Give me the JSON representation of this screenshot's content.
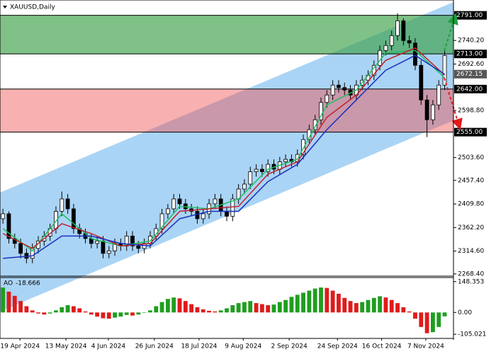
{
  "chart_data": {
    "type": "candlestick",
    "title": "XAUUSD,Daily",
    "xlim": [
      -0.5,
      76.5
    ],
    "xticks": [
      {
        "value": 2.9,
        "label": "19 Apr 2024"
      },
      {
        "value": 10.7,
        "label": "13 May 2024"
      },
      {
        "value": 17.9,
        "label": "4 Jun 2024"
      },
      {
        "value": 25.7,
        "label": "26 Jun 2024"
      },
      {
        "value": 33.3,
        "label": "18 Jul 2024"
      },
      {
        "value": 40.8,
        "label": "9 Aug 2024"
      },
      {
        "value": 48.6,
        "label": "2 Sep 2024"
      },
      {
        "value": 56.8,
        "label": "24 Sep 2024"
      },
      {
        "value": 64.3,
        "label": "16 Oct 2024"
      },
      {
        "value": 71.8,
        "label": "7 Nov 2024"
      }
    ],
    "ylim": [
      2264,
      2822
    ],
    "yticks": [
      {
        "value": 2740.2,
        "label": "2740.20"
      },
      {
        "value": 2692.6,
        "label": "2692.60"
      },
      {
        "value": 2598.8,
        "label": "2598.80"
      },
      {
        "value": 2503.6,
        "label": "2503.60"
      },
      {
        "value": 2457.4,
        "label": "2457.40"
      },
      {
        "value": 2409.8,
        "label": "2409.80"
      },
      {
        "value": 2362.2,
        "label": "2362.20"
      },
      {
        "value": 2314.6,
        "label": "2314.60"
      },
      {
        "value": 2268.4,
        "label": "2268.40"
      }
    ],
    "levels": [
      {
        "value": 2791,
        "label": "2791.00"
      },
      {
        "value": 2713,
        "label": "2713.00"
      },
      {
        "value": 2642,
        "label": "2642.00"
      },
      {
        "value": 2555,
        "label": "2555.00"
      }
    ],
    "last_price": 2672.15,
    "up_color": "#ffffff",
    "down_color": "#000000",
    "open": [
      2380,
      2390,
      2340,
      2330,
      2310,
      2300,
      2320,
      2335,
      2345,
      2360,
      2395,
      2420,
      2400,
      2360,
      2350,
      2340,
      2330,
      2335,
      2310,
      2315,
      2330,
      2325,
      2345,
      2325,
      2320,
      2330,
      2345,
      2360,
      2390,
      2400,
      2420,
      2410,
      2400,
      2395,
      2380,
      2390,
      2410,
      2420,
      2395,
      2385,
      2420,
      2440,
      2450,
      2475,
      2480,
      2475,
      2490,
      2480,
      2495,
      2500,
      2495,
      2510,
      2540,
      2560,
      2580,
      2615,
      2630,
      2650,
      2645,
      2640,
      2630,
      2650,
      2660,
      2670,
      2690,
      2720,
      2730,
      2750,
      2780,
      2740,
      2735,
      2690,
      2620,
      2580,
      2610,
      2650
    ],
    "high": [
      2400,
      2395,
      2350,
      2340,
      2320,
      2330,
      2345,
      2355,
      2370,
      2405,
      2435,
      2430,
      2410,
      2370,
      2360,
      2350,
      2345,
      2345,
      2325,
      2340,
      2340,
      2355,
      2355,
      2335,
      2340,
      2355,
      2370,
      2400,
      2410,
      2430,
      2430,
      2420,
      2410,
      2405,
      2400,
      2420,
      2430,
      2430,
      2405,
      2430,
      2450,
      2460,
      2485,
      2490,
      2490,
      2500,
      2500,
      2505,
      2510,
      2510,
      2520,
      2550,
      2570,
      2590,
      2625,
      2640,
      2660,
      2660,
      2655,
      2650,
      2660,
      2670,
      2680,
      2700,
      2730,
      2740,
      2760,
      2795,
      2785,
      2750,
      2745,
      2700,
      2630,
      2620,
      2660,
      2720
    ],
    "low": [
      2370,
      2330,
      2320,
      2300,
      2290,
      2290,
      2310,
      2325,
      2335,
      2350,
      2385,
      2390,
      2350,
      2340,
      2330,
      2320,
      2320,
      2300,
      2300,
      2305,
      2315,
      2315,
      2315,
      2310,
      2310,
      2320,
      2335,
      2350,
      2380,
      2390,
      2400,
      2390,
      2385,
      2370,
      2370,
      2380,
      2400,
      2385,
      2375,
      2375,
      2410,
      2430,
      2440,
      2465,
      2465,
      2465,
      2470,
      2470,
      2485,
      2485,
      2485,
      2500,
      2530,
      2550,
      2570,
      2605,
      2620,
      2635,
      2630,
      2620,
      2620,
      2640,
      2650,
      2660,
      2680,
      2710,
      2720,
      2740,
      2730,
      2725,
      2680,
      2610,
      2545,
      2570,
      2600,
      2640
    ],
    "close": [
      2390,
      2340,
      2330,
      2310,
      2300,
      2320,
      2335,
      2345,
      2360,
      2395,
      2420,
      2400,
      2360,
      2350,
      2340,
      2330,
      2335,
      2310,
      2315,
      2330,
      2325,
      2345,
      2325,
      2320,
      2330,
      2345,
      2360,
      2390,
      2400,
      2420,
      2410,
      2400,
      2395,
      2380,
      2390,
      2410,
      2420,
      2395,
      2385,
      2420,
      2440,
      2450,
      2475,
      2480,
      2475,
      2490,
      2480,
      2495,
      2500,
      2495,
      2510,
      2540,
      2560,
      2580,
      2615,
      2630,
      2650,
      2645,
      2640,
      2630,
      2650,
      2660,
      2670,
      2690,
      2720,
      2730,
      2750,
      2780,
      2740,
      2735,
      2690,
      2620,
      2580,
      2610,
      2650,
      2710
    ],
    "ma_x": [
      0,
      5,
      10,
      15,
      20,
      25,
      30,
      35,
      40,
      45,
      50,
      55,
      60,
      65,
      70,
      75
    ],
    "series": [
      {
        "color": "#1fbf5f",
        "values": [
          2360,
          2315,
          2390,
          2340,
          2325,
          2335,
          2405,
          2400,
          2420,
          2480,
          2500,
          2610,
          2640,
          2715,
          2720,
          2665
        ]
      },
      {
        "color": "#c0202a",
        "values": [
          2350,
          2320,
          2370,
          2350,
          2325,
          2330,
          2395,
          2400,
          2405,
          2470,
          2495,
          2585,
          2630,
          2700,
          2725,
          2670
        ]
      },
      {
        "color": "#1a2fbf",
        "values": [
          2300,
          2305,
          2345,
          2345,
          2330,
          2325,
          2380,
          2395,
          2395,
          2455,
          2490,
          2560,
          2620,
          2680,
          2710,
          2672
        ]
      }
    ],
    "indicator": {
      "type": "bar",
      "name": "AO",
      "ylim": [
        -125,
        168
      ],
      "yticks": [
        148.353,
        {
          "value": 0,
          "label": "0.00"
        },
        -105.021
      ],
      "up_color": "#1f9e1f",
      "down_color": "#e01b1b",
      "values": [
        120,
        100,
        80,
        55,
        30,
        10,
        -5,
        -10,
        -5,
        10,
        25,
        35,
        30,
        20,
        5,
        -10,
        -20,
        -28,
        -30,
        -25,
        -20,
        -12,
        -15,
        -10,
        -2,
        10,
        30,
        50,
        65,
        72,
        68,
        55,
        40,
        25,
        15,
        8,
        5,
        10,
        20,
        35,
        45,
        50,
        55,
        45,
        40,
        35,
        38,
        50,
        60,
        75,
        85,
        95,
        105,
        115,
        120,
        118,
        105,
        90,
        70,
        55,
        45,
        50,
        60,
        70,
        78,
        72,
        60,
        45,
        25,
        5,
        -30,
        -70,
        -100,
        -95,
        -70,
        -18.666
      ]
    }
  }
}
